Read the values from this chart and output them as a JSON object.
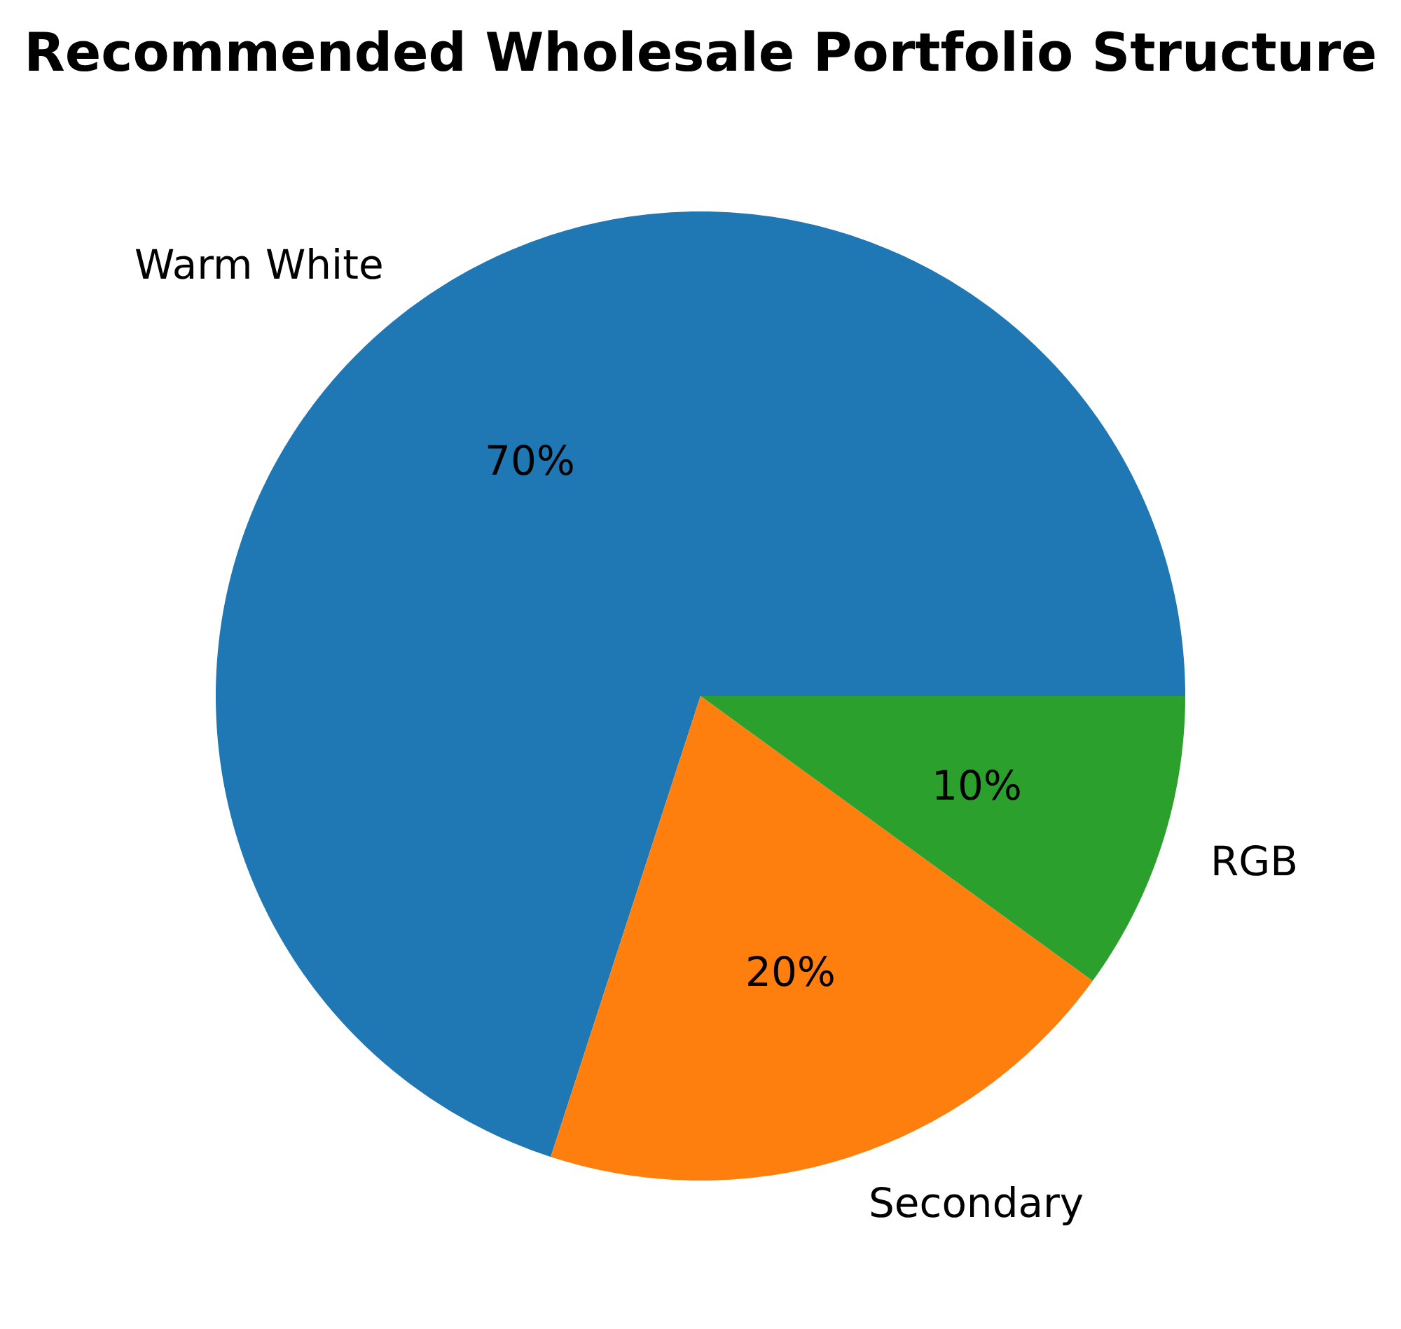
{
  "chart_data": {
    "type": "pie",
    "title": "Recommended Wholesale Portfolio Structure",
    "categories": [
      "Warm White",
      "Secondary",
      "RGB"
    ],
    "values": [
      70,
      20,
      10
    ],
    "colors": [
      "#1f77b4",
      "#ff7f0e",
      "#2ca02c"
    ],
    "value_labels": [
      "70%",
      "20%",
      "10%"
    ]
  }
}
